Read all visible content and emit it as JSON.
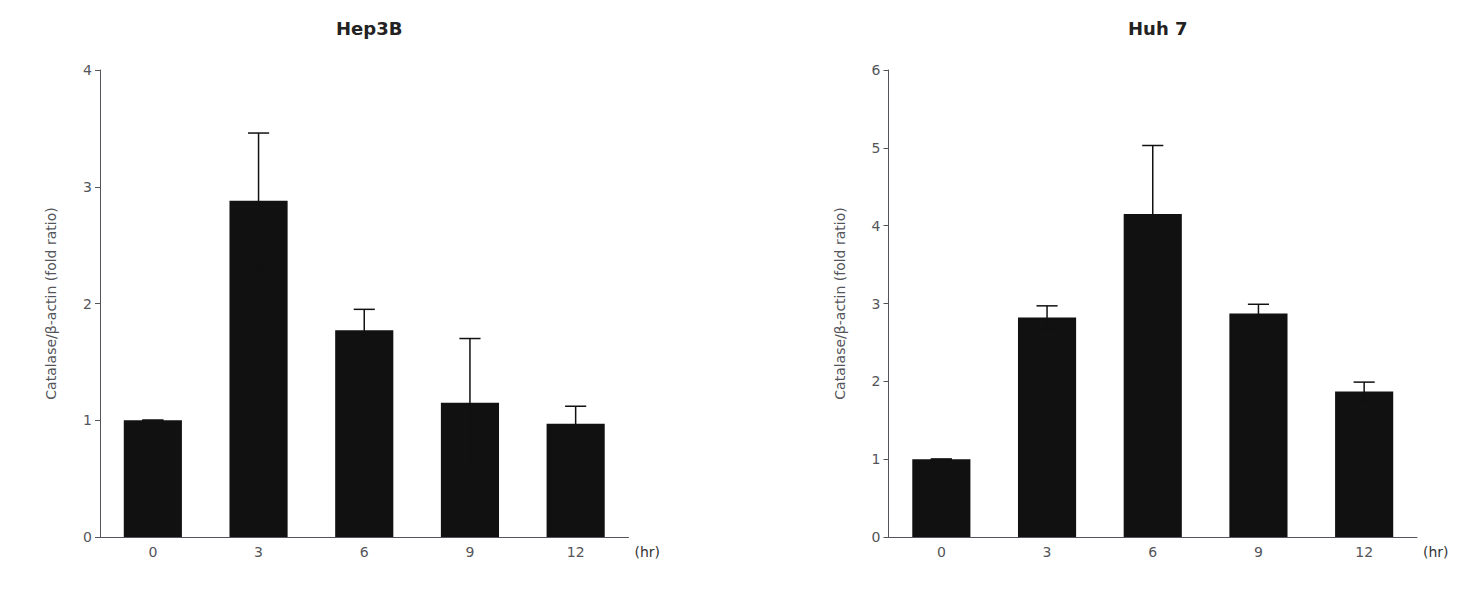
{
  "chart_data": [
    {
      "type": "bar",
      "title": "Hep3B",
      "categories": [
        "0",
        "3",
        "6",
        "9",
        "12"
      ],
      "values": [
        1.0,
        2.88,
        1.77,
        1.15,
        0.97
      ],
      "errors": [
        0.0,
        0.58,
        0.18,
        0.55,
        0.15
      ],
      "color": "#111111",
      "ylabel": "Catalase/β-actin (fold ratio)",
      "ylim": [
        0,
        4
      ],
      "yticks": [
        0,
        1,
        2,
        3,
        4
      ],
      "grid": false,
      "annotations": [
        "(hr)"
      ]
    },
    {
      "type": "bar",
      "title": "Huh 7",
      "categories": [
        "0",
        "3",
        "6",
        "9",
        "12"
      ],
      "values": [
        1.0,
        2.82,
        4.15,
        2.87,
        1.87
      ],
      "errors": [
        0.0,
        0.15,
        0.88,
        0.12,
        0.12
      ],
      "color": "#111111",
      "ylabel": "Catalase/β-actin (fold ratio)",
      "ylim": [
        0,
        6
      ],
      "yticks": [
        0,
        1,
        2,
        3,
        4,
        5,
        6
      ],
      "grid": false,
      "annotations": [
        "(hr)"
      ]
    }
  ]
}
